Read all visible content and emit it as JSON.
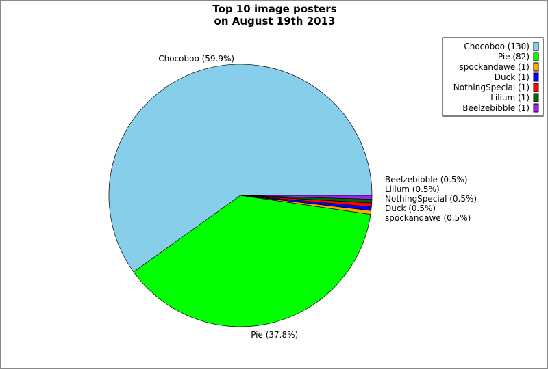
{
  "chart_data": {
    "type": "pie",
    "title": [
      "Top 10 image posters",
      "on August 19th 2013"
    ],
    "slices": [
      {
        "name": "Chocoboo",
        "value": 130,
        "percent_label": "Chocoboo (59.9%)",
        "legend": "Chocoboo (130)",
        "color": "#87ceeb"
      },
      {
        "name": "Pie",
        "value": 82,
        "percent_label": "Pie (37.8%)",
        "legend": "Pie (82)",
        "color": "#00ff00"
      },
      {
        "name": "spockandawe",
        "value": 1,
        "percent_label": "spockandawe (0.5%)",
        "legend": "spockandawe (1)",
        "color": "#ffa500"
      },
      {
        "name": "Duck",
        "value": 1,
        "percent_label": "Duck (0.5%)",
        "legend": "Duck (1)",
        "color": "#0000ff"
      },
      {
        "name": "NothingSpecial",
        "value": 1,
        "percent_label": "NothingSpecial (0.5%)",
        "legend": "NothingSpecial (1)",
        "color": "#ff0000"
      },
      {
        "name": "Lilium",
        "value": 1,
        "percent_label": "Lilium (0.5%)",
        "legend": "Lilium (1)",
        "color": "#006400"
      },
      {
        "name": "Beelzebibble",
        "value": 1,
        "percent_label": "Beelzebibble (0.5%)",
        "legend": "Beelzebibble (1)",
        "color": "#a020f0"
      }
    ],
    "legend_position": "top-right"
  }
}
